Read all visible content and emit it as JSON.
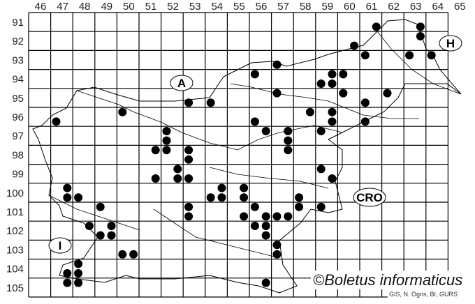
{
  "map": {
    "columns": [
      "46",
      "47",
      "48",
      "49",
      "50",
      "51",
      "52",
      "53",
      "54",
      "55",
      "56",
      "57",
      "58",
      "59",
      "60",
      "61",
      "62",
      "63",
      "64",
      "65"
    ],
    "rows": [
      "91",
      "92",
      "93",
      "94",
      "95",
      "96",
      "97",
      "98",
      "99",
      "100",
      "101",
      "102",
      "103",
      "104",
      "105"
    ],
    "country_labels": {
      "austria": "A",
      "hungary": "H",
      "italy": "I",
      "croatia": "CRO"
    },
    "watermark": "©Boletus informaticus",
    "credit": "GIS, N. Ogris, BI, GURS",
    "dot_color": "#000000",
    "records": [
      [
        47.25,
        96.75
      ],
      [
        50.25,
        96.25
      ],
      [
        53.25,
        95.75
      ],
      [
        54.25,
        95.75
      ],
      [
        52.25,
        97.25
      ],
      [
        52.25,
        97.75
      ],
      [
        51.75,
        98.25
      ],
      [
        52.25,
        98.25
      ],
      [
        53.25,
        98.25
      ],
      [
        53.25,
        98.75
      ],
      [
        52.75,
        99.25
      ],
      [
        51.75,
        99.75
      ],
      [
        52.75,
        99.75
      ],
      [
        53.25,
        99.75
      ],
      [
        47.75,
        100.25
      ],
      [
        47.75,
        100.75
      ],
      [
        48.25,
        100.75
      ],
      [
        49.25,
        101.25
      ],
      [
        48.75,
        102.25
      ],
      [
        49.25,
        102.75
      ],
      [
        49.75,
        102.25
      ],
      [
        49.75,
        102.75
      ],
      [
        50.25,
        103.75
      ],
      [
        50.75,
        103.75
      ],
      [
        48.25,
        104.25
      ],
      [
        47.75,
        104.75
      ],
      [
        48.25,
        104.75
      ],
      [
        47.75,
        105.25
      ],
      [
        48.25,
        105.25
      ],
      [
        53.25,
        101.25
      ],
      [
        53.25,
        101.75
      ],
      [
        54.25,
        100.75
      ],
      [
        54.75,
        100.25
      ],
      [
        54.75,
        100.75
      ],
      [
        59.25,
        99.25
      ],
      [
        59.75,
        99.75
      ],
      [
        55.75,
        100.25
      ],
      [
        55.75,
        100.75
      ],
      [
        58.25,
        100.75
      ],
      [
        56.25,
        101.25
      ],
      [
        58.25,
        101.25
      ],
      [
        59.25,
        101.25
      ],
      [
        55.75,
        101.75
      ],
      [
        56.75,
        101.75
      ],
      [
        57.25,
        101.75
      ],
      [
        57.75,
        101.75
      ],
      [
        56.25,
        102.25
      ],
      [
        56.75,
        102.25
      ],
      [
        56.75,
        102.75
      ],
      [
        57.25,
        103.25
      ],
      [
        57.25,
        103.75
      ],
      [
        56.75,
        105.25
      ],
      [
        61.75,
        91.75
      ],
      [
        63.75,
        91.75
      ],
      [
        63.75,
        92.25
      ],
      [
        60.75,
        92.75
      ],
      [
        61.25,
        93.25
      ],
      [
        63.25,
        93.25
      ],
      [
        64.25,
        93.25
      ],
      [
        57.25,
        93.75
      ],
      [
        56.25,
        94.25
      ],
      [
        59.75,
        94.25
      ],
      [
        60.25,
        94.25
      ],
      [
        59.25,
        94.75
      ],
      [
        59.75,
        94.75
      ],
      [
        57.25,
        95.25
      ],
      [
        60.25,
        95.25
      ],
      [
        62.25,
        95.25
      ],
      [
        61.25,
        95.75
      ],
      [
        58.75,
        96.25
      ],
      [
        59.75,
        96.25
      ],
      [
        59.75,
        96.75
      ],
      [
        61.25,
        96.75
      ],
      [
        56.25,
        96.75
      ],
      [
        56.75,
        97.25
      ],
      [
        57.75,
        97.25
      ],
      [
        59.25,
        97.25
      ],
      [
        57.75,
        97.75
      ],
      [
        57.75,
        98.25
      ]
    ]
  }
}
